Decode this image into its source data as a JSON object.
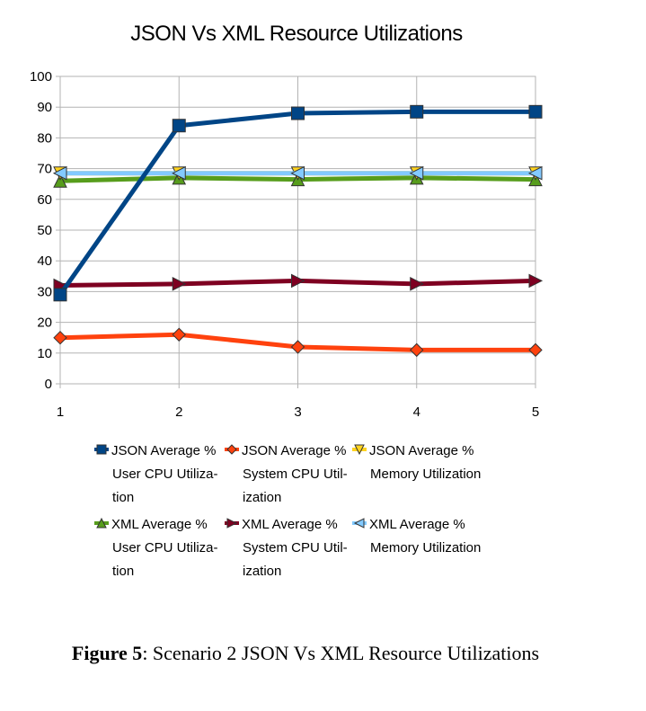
{
  "chart_data": {
    "type": "line",
    "title": "JSON Vs XML Resource Utilizations",
    "x": [
      1,
      2,
      3,
      4,
      5
    ],
    "ylim": [
      0,
      100
    ],
    "yticks": [
      0,
      10,
      20,
      30,
      40,
      50,
      60,
      70,
      80,
      90,
      100
    ],
    "grid": true,
    "legend_position": "bottom",
    "series": [
      {
        "name": "JSON Average % User CPU Utilization",
        "legend_lines": [
          "JSON Average %",
          "User CPU Utiliza-",
          "tion"
        ],
        "values": [
          29,
          84,
          88,
          88.5,
          88.5
        ],
        "color": "#004586",
        "marker": "square"
      },
      {
        "name": "JSON Average % System CPU Utilization",
        "legend_lines": [
          "JSON Average %",
          "System CPU Util-",
          "ization"
        ],
        "values": [
          15,
          16,
          12,
          11,
          11
        ],
        "color": "#ff420e",
        "marker": "diamond"
      },
      {
        "name": "JSON Average % Memory Utilization",
        "legend_lines": [
          "JSON Average %",
          "Memory Utilization"
        ],
        "values": [
          68.5,
          68.5,
          68.5,
          68.5,
          68.5
        ],
        "color": "#ffd320",
        "marker": "triangle-down"
      },
      {
        "name": "XML Average % User CPU Utilization",
        "legend_lines": [
          "XML Average %",
          "User CPU Utiliza-",
          "tion"
        ],
        "values": [
          66,
          67,
          66.5,
          67,
          66.5
        ],
        "color": "#579d1c",
        "marker": "triangle-up"
      },
      {
        "name": "XML Average % System CPU Utilization",
        "legend_lines": [
          "XML Average %",
          "System CPU Util-",
          "ization"
        ],
        "values": [
          32,
          32.5,
          33.5,
          32.5,
          33.5
        ],
        "color": "#7e0021",
        "marker": "triangle-right"
      },
      {
        "name": "XML Average % Memory Utilization",
        "legend_lines": [
          "XML Average %",
          "Memory Utilization"
        ],
        "values": [
          68.5,
          68.5,
          68.5,
          68.5,
          68.5
        ],
        "color": "#83caff",
        "marker": "triangle-left"
      }
    ]
  },
  "caption": {
    "label": "Figure 5",
    "text": ": Scenario 2 JSON Vs XML Resource Utilizations"
  }
}
